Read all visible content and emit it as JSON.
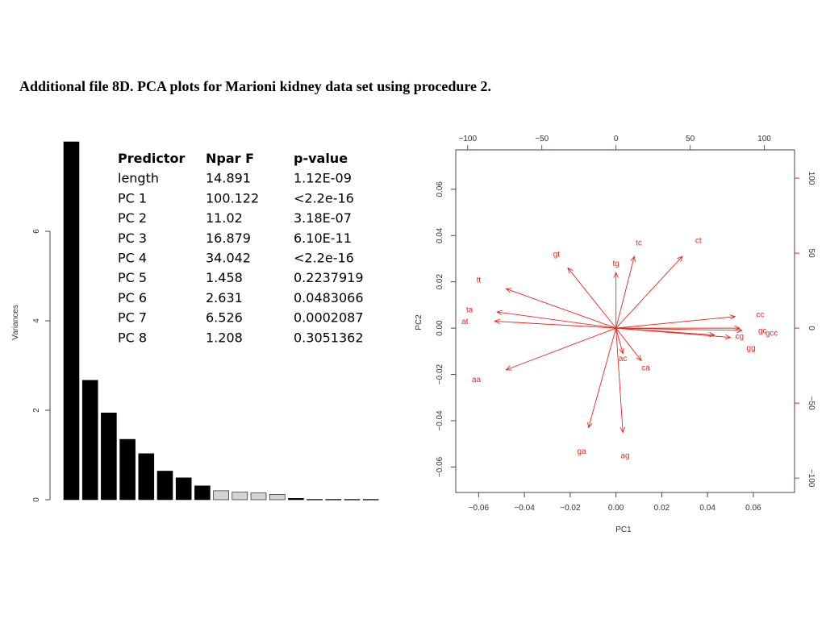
{
  "page": {
    "title": "Additional file 8D. PCA plots for Marioni kidney data set using procedure 2."
  },
  "chart_data": [
    {
      "type": "bar",
      "title": "",
      "xlabel": "",
      "ylabel": "Variances",
      "ylim": [
        0,
        8
      ],
      "yticks": [
        "0",
        "2",
        "4",
        "6"
      ],
      "values": [
        8.0,
        2.67,
        1.94,
        1.35,
        1.03,
        0.64,
        0.49,
        0.31,
        0.2,
        0.17,
        0.15,
        0.12,
        0.03,
        0.01,
        0.01,
        0.01,
        0.01
      ],
      "bar_colors": [
        "#000000",
        "#000000",
        "#000000",
        "#000000",
        "#000000",
        "#000000",
        "#000000",
        "#000000",
        "#d3d3d3",
        "#d3d3d3",
        "#d3d3d3",
        "#d3d3d3",
        "#000000",
        "#d3d3d3",
        "#d3d3d3",
        "#d3d3d3",
        "#d3d3d3"
      ],
      "table": {
        "headers": [
          "Predictor",
          "Npar F",
          "p-value"
        ],
        "rows": [
          [
            "length",
            "14.891",
            "1.12E-09"
          ],
          [
            "PC 1",
            "100.122",
            "<2.2e-16"
          ],
          [
            "PC 2",
            "11.02",
            "3.18E-07"
          ],
          [
            "PC 3",
            "16.879",
            "6.10E-11"
          ],
          [
            "PC 4",
            "34.042",
            "<2.2e-16"
          ],
          [
            "PC 5",
            "1.458",
            "0.2237919"
          ],
          [
            "PC 6",
            "2.631",
            "0.0483066"
          ],
          [
            "PC 7",
            "6.526",
            "0.0002087"
          ],
          [
            "PC 8",
            "1.208",
            "0.3051362"
          ]
        ]
      }
    },
    {
      "type": "scatter",
      "subtype": "biplot",
      "title": "",
      "xlabel": "PC1",
      "ylabel": "PC2",
      "xlim": [
        -0.07,
        0.078
      ],
      "ylim": [
        -0.071,
        0.077
      ],
      "xticks": [
        -0.06,
        -0.04,
        -0.02,
        0.0,
        0.02,
        0.04,
        0.06
      ],
      "xtick_labels": [
        "−0.06",
        "−0.04",
        "−0.02",
        "0.00",
        "0.02",
        "0.04",
        "0.06"
      ],
      "yticks": [
        -0.06,
        -0.04,
        -0.02,
        0.0,
        0.02,
        0.04,
        0.06
      ],
      "ytick_labels": [
        "−0.06",
        "−0.04",
        "−0.02",
        "0.00",
        "0.02",
        "0.04",
        "0.06"
      ],
      "secondary_scale": 0.000648,
      "top_ticks": [
        -100,
        -50,
        0,
        50,
        100
      ],
      "top_tick_labels": [
        "−100",
        "−50",
        "0",
        "50",
        "100"
      ],
      "right_ticks": [
        -100,
        -50,
        0,
        50,
        100
      ],
      "right_tick_labels": [
        "−100",
        "−50",
        "0",
        "50",
        "100"
      ],
      "color": "#e8281e",
      "arrows": [
        {
          "label": "cc",
          "x": 0.052,
          "y": 0.005,
          "lx": 0.063,
          "ly": 0.006
        },
        {
          "label": "gc",
          "x": 0.054,
          "y": 0.0,
          "lx": 0.064,
          "ly": -0.001
        },
        {
          "label": "gcc",
          "x": 0.055,
          "y": -0.001,
          "lx": 0.068,
          "ly": -0.002
        },
        {
          "label": "cg",
          "x": 0.043,
          "y": -0.003,
          "lx": 0.054,
          "ly": -0.0035
        },
        {
          "label": "gg",
          "x": 0.05,
          "y": -0.004,
          "lx": 0.059,
          "ly": -0.0085
        },
        {
          "label": "ct",
          "x": 0.029,
          "y": 0.031,
          "lx": 0.036,
          "ly": 0.038
        },
        {
          "label": "tc",
          "x": 0.008,
          "y": 0.031,
          "lx": 0.01,
          "ly": 0.037
        },
        {
          "label": "tg",
          "x": 0.0,
          "y": 0.024,
          "lx": 0.0,
          "ly": 0.028
        },
        {
          "label": "gt",
          "x": -0.021,
          "y": 0.026,
          "lx": -0.026,
          "ly": 0.032
        },
        {
          "label": "tt",
          "x": -0.048,
          "y": 0.017,
          "lx": -0.06,
          "ly": 0.021
        },
        {
          "label": "ta",
          "x": -0.052,
          "y": 0.007,
          "lx": -0.064,
          "ly": 0.008
        },
        {
          "label": "at",
          "x": -0.053,
          "y": 0.003,
          "lx": -0.066,
          "ly": 0.003
        },
        {
          "label": "aa",
          "x": -0.048,
          "y": -0.018,
          "lx": -0.061,
          "ly": -0.022
        },
        {
          "label": "ac",
          "x": 0.003,
          "y": -0.011,
          "lx": 0.003,
          "ly": -0.013
        },
        {
          "label": "ca",
          "x": 0.011,
          "y": -0.014,
          "lx": 0.013,
          "ly": -0.017
        },
        {
          "label": "ga",
          "x": -0.012,
          "y": -0.043,
          "lx": -0.015,
          "ly": -0.053
        },
        {
          "label": "ag",
          "x": 0.003,
          "y": -0.045,
          "lx": 0.004,
          "ly": -0.055
        }
      ]
    }
  ]
}
